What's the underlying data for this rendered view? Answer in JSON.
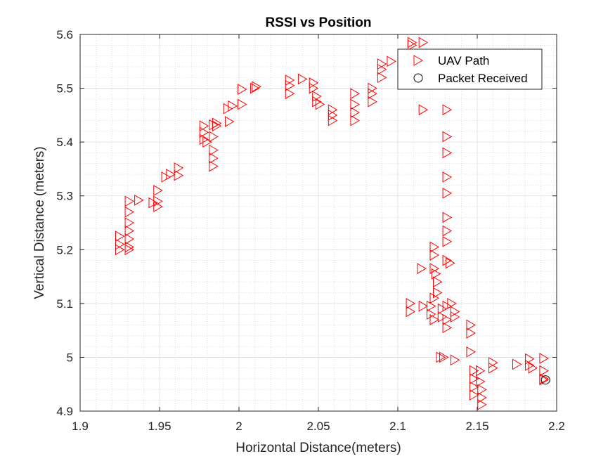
{
  "chart_data": {
    "type": "scatter",
    "title": "RSSI vs Position",
    "xlabel": "Horizontal Distance(meters)",
    "ylabel": "Vertical Distance (meters)",
    "xlim": [
      1.9,
      2.2
    ],
    "ylim": [
      4.9,
      5.6
    ],
    "xticks": [
      "1.9",
      "1.95",
      "2",
      "2.05",
      "2.1",
      "2.15",
      "2.2"
    ],
    "yticks": [
      "4.9",
      "5",
      "5.1",
      "5.2",
      "5.3",
      "5.4",
      "5.5",
      "5.6"
    ],
    "grid": "major and minor",
    "legend_position": "top-right",
    "series": [
      {
        "name": "UAV Path",
        "marker": "triangle-right",
        "color": "#ff0000",
        "points": [
          [
            1.925,
            5.225
          ],
          [
            1.925,
            5.21
          ],
          [
            1.925,
            5.2
          ],
          [
            1.931,
            5.29
          ],
          [
            1.931,
            5.27
          ],
          [
            1.931,
            5.25
          ],
          [
            1.931,
            5.235
          ],
          [
            1.931,
            5.22
          ],
          [
            1.931,
            5.205
          ],
          [
            1.931,
            5.2
          ],
          [
            1.937,
            5.292
          ],
          [
            1.946,
            5.287
          ],
          [
            1.949,
            5.31
          ],
          [
            1.949,
            5.29
          ],
          [
            1.949,
            5.28
          ],
          [
            1.954,
            5.335
          ],
          [
            1.957,
            5.34
          ],
          [
            1.962,
            5.352
          ],
          [
            1.962,
            5.338
          ],
          [
            1.978,
            5.43
          ],
          [
            1.978,
            5.418
          ],
          [
            1.978,
            5.405
          ],
          [
            1.98,
            5.4
          ],
          [
            1.984,
            5.432
          ],
          [
            1.984,
            5.41
          ],
          [
            1.984,
            5.385
          ],
          [
            1.984,
            5.37
          ],
          [
            1.984,
            5.355
          ],
          [
            1.986,
            5.435
          ],
          [
            1.986,
            5.43
          ],
          [
            1.994,
            5.438
          ],
          [
            1.993,
            5.462
          ],
          [
            1.996,
            5.467
          ],
          [
            2.002,
            5.498
          ],
          [
            2.002,
            5.47
          ],
          [
            2.01,
            5.5
          ],
          [
            2.011,
            5.503
          ],
          [
            2.032,
            5.515
          ],
          [
            2.032,
            5.505
          ],
          [
            2.032,
            5.49
          ],
          [
            2.04,
            5.517
          ],
          [
            2.047,
            5.51
          ],
          [
            2.047,
            5.5
          ],
          [
            2.049,
            5.485
          ],
          [
            2.049,
            5.475
          ],
          [
            2.051,
            5.47
          ],
          [
            2.059,
            5.46
          ],
          [
            2.059,
            5.45
          ],
          [
            2.059,
            5.44
          ],
          [
            2.073,
            5.49
          ],
          [
            2.073,
            5.47
          ],
          [
            2.073,
            5.455
          ],
          [
            2.073,
            5.44
          ],
          [
            2.084,
            5.5
          ],
          [
            2.084,
            5.49
          ],
          [
            2.084,
            5.475
          ],
          [
            2.09,
            5.545
          ],
          [
            2.09,
            5.535
          ],
          [
            2.09,
            5.52
          ],
          [
            2.096,
            5.55
          ],
          [
            2.109,
            5.585
          ],
          [
            2.109,
            5.58
          ],
          [
            2.116,
            5.585
          ],
          [
            2.116,
            5.46
          ],
          [
            2.131,
            5.46
          ],
          [
            2.131,
            5.41
          ],
          [
            2.131,
            5.38
          ],
          [
            2.131,
            5.335
          ],
          [
            2.131,
            5.305
          ],
          [
            2.131,
            5.26
          ],
          [
            2.131,
            5.235
          ],
          [
            2.131,
            5.215
          ],
          [
            2.131,
            5.18
          ],
          [
            2.133,
            5.175
          ],
          [
            2.115,
            5.165
          ],
          [
            2.123,
            5.205
          ],
          [
            2.123,
            5.19
          ],
          [
            2.123,
            5.165
          ],
          [
            2.124,
            5.155
          ],
          [
            2.125,
            5.14
          ],
          [
            2.125,
            5.12
          ],
          [
            2.123,
            5.11
          ],
          [
            2.108,
            5.1
          ],
          [
            2.108,
            5.085
          ],
          [
            2.116,
            5.095
          ],
          [
            2.121,
            5.095
          ],
          [
            2.121,
            5.08
          ],
          [
            2.123,
            5.07
          ],
          [
            2.128,
            5.09
          ],
          [
            2.128,
            5.075
          ],
          [
            2.131,
            5.07
          ],
          [
            2.131,
            5.055
          ],
          [
            2.131,
            5.095
          ],
          [
            2.134,
            5.1
          ],
          [
            2.136,
            5.085
          ],
          [
            2.136,
            5.075
          ],
          [
            2.146,
            5.06
          ],
          [
            2.146,
            5.045
          ],
          [
            2.127,
            5.0
          ],
          [
            2.129,
            5.0
          ],
          [
            2.136,
            4.995
          ],
          [
            2.146,
            5.01
          ],
          [
            2.148,
            4.975
          ],
          [
            2.148,
            4.96
          ],
          [
            2.148,
            4.945
          ],
          [
            2.148,
            4.93
          ],
          [
            2.152,
            4.975
          ],
          [
            2.152,
            4.955
          ],
          [
            2.153,
            4.94
          ],
          [
            2.153,
            4.925
          ],
          [
            2.153,
            4.912
          ],
          [
            2.16,
            4.99
          ],
          [
            2.16,
            4.98
          ],
          [
            2.175,
            4.987
          ],
          [
            2.183,
            4.997
          ],
          [
            2.183,
            4.985
          ],
          [
            2.185,
            4.98
          ],
          [
            2.192,
            4.998
          ],
          [
            2.192,
            4.975
          ],
          [
            2.192,
            4.96
          ],
          [
            2.192,
            4.958
          ]
        ]
      },
      {
        "name": "Packet Received",
        "marker": "circle",
        "color": "#000000",
        "points": [
          [
            2.193,
            4.958
          ]
        ]
      }
    ]
  }
}
